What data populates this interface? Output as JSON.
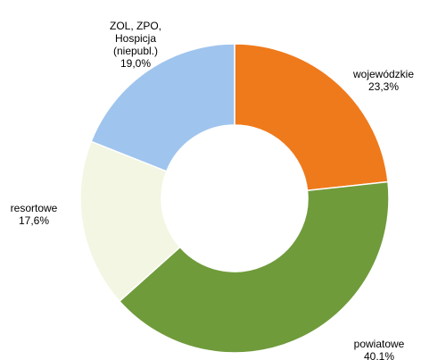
{
  "chart_data": {
    "type": "donut",
    "categories": [
      "wojewódzkie",
      "powiatowe",
      "resortowe",
      "ZOL, ZPO, Hospicja (niepubl.)"
    ],
    "values": [
      23.3,
      40.1,
      17.6,
      19.0
    ],
    "value_labels": [
      "23,3%",
      "40,1%",
      "17,6%",
      "19,0%"
    ],
    "colors": [
      "#ef7a1c",
      "#6f9b3b",
      "#f2f6e2",
      "#9fc4ee"
    ]
  }
}
